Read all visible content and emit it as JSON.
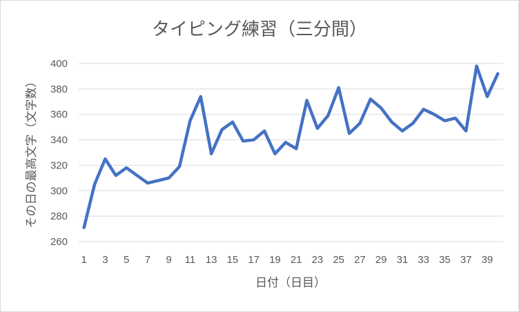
{
  "chart_data": {
    "type": "line",
    "title": "タイピング練習（三分間）",
    "xlabel": "日付（日目）",
    "ylabel": "その日の最高文字（文字数）",
    "x": [
      1,
      2,
      3,
      4,
      5,
      6,
      7,
      8,
      9,
      10,
      11,
      12,
      13,
      14,
      15,
      16,
      17,
      18,
      19,
      20,
      21,
      22,
      23,
      24,
      25,
      26,
      27,
      28,
      29,
      30,
      31,
      32,
      33,
      34,
      35,
      36,
      37,
      38,
      39,
      40
    ],
    "x_tick_labels": [
      "1",
      "3",
      "5",
      "7",
      "9",
      "11",
      "13",
      "15",
      "17",
      "19",
      "21",
      "23",
      "25",
      "27",
      "29",
      "31",
      "33",
      "35",
      "37",
      "39"
    ],
    "y_tick_labels": [
      "260",
      "280",
      "300",
      "320",
      "340",
      "360",
      "380",
      "400"
    ],
    "ylim": [
      260,
      400
    ],
    "grid": true,
    "series": [
      {
        "color": "#4472c4",
        "values": [
          271,
          305,
          325,
          312,
          318,
          312,
          306,
          308,
          310,
          319,
          355,
          374,
          329,
          348,
          354,
          339,
          340,
          347,
          329,
          338,
          333,
          371,
          349,
          359,
          381,
          345,
          353,
          372,
          365,
          354,
          347,
          353,
          364,
          360,
          355,
          357,
          347,
          398,
          374,
          392
        ]
      }
    ]
  }
}
